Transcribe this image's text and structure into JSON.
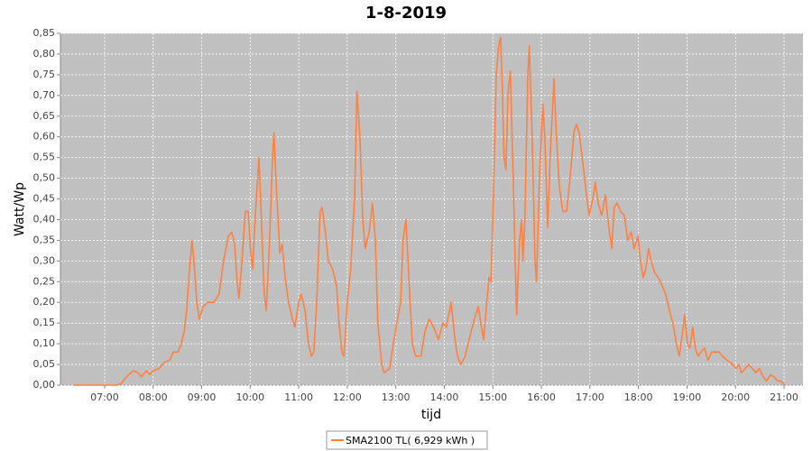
{
  "chart_data": {
    "type": "line",
    "title": "1-8-2019",
    "x_label": "tijd",
    "y_label": "Watt/Wp",
    "x": [
      6.37,
      7.26,
      7.35,
      7.45,
      7.59,
      7.69,
      7.76,
      7.86,
      7.93,
      8.0,
      8.12,
      8.23,
      8.34,
      8.41,
      8.51,
      8.58,
      8.64,
      8.69,
      8.75,
      8.8,
      8.84,
      8.9,
      8.95,
      9.03,
      9.12,
      9.25,
      9.36,
      9.45,
      9.55,
      9.62,
      9.68,
      9.73,
      9.77,
      9.83,
      9.9,
      9.96,
      10.01,
      10.05,
      10.1,
      10.18,
      10.23,
      10.29,
      10.33,
      10.4,
      10.46,
      10.49,
      10.53,
      10.61,
      10.66,
      10.72,
      10.79,
      10.87,
      10.92,
      11.0,
      11.05,
      11.13,
      11.2,
      11.26,
      11.31,
      11.37,
      11.44,
      11.48,
      11.54,
      11.61,
      11.7,
      11.78,
      11.83,
      11.89,
      11.93,
      12.0,
      12.07,
      12.15,
      12.2,
      12.26,
      12.32,
      12.37,
      12.45,
      12.52,
      12.58,
      12.63,
      12.71,
      12.76,
      12.87,
      12.95,
      13.02,
      13.1,
      13.15,
      13.21,
      13.26,
      13.34,
      13.41,
      13.52,
      13.6,
      13.69,
      13.78,
      13.88,
      13.97,
      14.04,
      14.14,
      14.21,
      14.27,
      14.34,
      14.43,
      14.53,
      14.62,
      14.7,
      14.75,
      14.81,
      14.86,
      14.92,
      14.96,
      15.01,
      15.07,
      15.12,
      15.16,
      15.2,
      15.23,
      15.27,
      15.31,
      15.36,
      15.42,
      15.46,
      15.49,
      15.55,
      15.59,
      15.62,
      15.66,
      15.72,
      15.75,
      15.81,
      15.87,
      15.9,
      15.96,
      16.03,
      16.07,
      16.13,
      16.18,
      16.26,
      16.31,
      16.37,
      16.44,
      16.52,
      16.59,
      16.67,
      16.72,
      16.78,
      16.85,
      16.93,
      16.98,
      17.06,
      17.11,
      17.17,
      17.24,
      17.32,
      17.39,
      17.45,
      17.5,
      17.56,
      17.63,
      17.71,
      17.78,
      17.85,
      17.91,
      17.99,
      18.04,
      18.1,
      18.15,
      18.21,
      18.26,
      18.34,
      18.41,
      18.49,
      18.56,
      18.64,
      18.71,
      18.78,
      18.84,
      18.9,
      18.95,
      19.01,
      19.06,
      19.12,
      19.17,
      19.23,
      19.29,
      19.36,
      19.43,
      19.51,
      19.58,
      19.66,
      19.73,
      19.83,
      19.94,
      20.01,
      20.07,
      20.12,
      20.2,
      20.27,
      20.35,
      20.42,
      20.49,
      20.57,
      20.64,
      20.72,
      20.79,
      20.87,
      20.94,
      21.01
    ],
    "series": [
      {
        "name": "SMA2100 TL( 6,929 kWh )",
        "color": "#ff8040",
        "values": [
          0,
          0,
          0.005,
          0.02,
          0.035,
          0.03,
          0.02,
          0.035,
          0.025,
          0.035,
          0.04,
          0.055,
          0.06,
          0.08,
          0.08,
          0.1,
          0.13,
          0.18,
          0.28,
          0.35,
          0.3,
          0.2,
          0.16,
          0.19,
          0.2,
          0.2,
          0.22,
          0.3,
          0.36,
          0.37,
          0.34,
          0.25,
          0.21,
          0.3,
          0.42,
          0.42,
          0.32,
          0.28,
          0.4,
          0.55,
          0.4,
          0.22,
          0.18,
          0.35,
          0.55,
          0.61,
          0.5,
          0.32,
          0.34,
          0.26,
          0.2,
          0.16,
          0.14,
          0.2,
          0.22,
          0.18,
          0.1,
          0.07,
          0.08,
          0.2,
          0.42,
          0.43,
          0.38,
          0.3,
          0.28,
          0.24,
          0.15,
          0.08,
          0.07,
          0.2,
          0.28,
          0.45,
          0.71,
          0.6,
          0.4,
          0.33,
          0.37,
          0.44,
          0.35,
          0.15,
          0.05,
          0.03,
          0.04,
          0.1,
          0.15,
          0.2,
          0.35,
          0.4,
          0.28,
          0.1,
          0.07,
          0.07,
          0.13,
          0.16,
          0.14,
          0.11,
          0.15,
          0.14,
          0.2,
          0.12,
          0.07,
          0.05,
          0.07,
          0.12,
          0.16,
          0.19,
          0.15,
          0.11,
          0.18,
          0.26,
          0.25,
          0.45,
          0.75,
          0.82,
          0.84,
          0.7,
          0.55,
          0.52,
          0.7,
          0.76,
          0.5,
          0.3,
          0.17,
          0.35,
          0.4,
          0.3,
          0.4,
          0.75,
          0.82,
          0.6,
          0.3,
          0.25,
          0.5,
          0.68,
          0.6,
          0.38,
          0.55,
          0.74,
          0.6,
          0.48,
          0.42,
          0.42,
          0.5,
          0.61,
          0.63,
          0.61,
          0.54,
          0.46,
          0.41,
          0.45,
          0.49,
          0.44,
          0.41,
          0.46,
          0.38,
          0.33,
          0.43,
          0.44,
          0.42,
          0.41,
          0.35,
          0.37,
          0.33,
          0.36,
          0.3,
          0.26,
          0.28,
          0.33,
          0.3,
          0.27,
          0.26,
          0.24,
          0.22,
          0.18,
          0.15,
          0.1,
          0.07,
          0.12,
          0.17,
          0.1,
          0.09,
          0.14,
          0.09,
          0.07,
          0.08,
          0.09,
          0.06,
          0.08,
          0.08,
          0.08,
          0.07,
          0.06,
          0.05,
          0.04,
          0.05,
          0.03,
          0.04,
          0.05,
          0.04,
          0.03,
          0.04,
          0.02,
          0.01,
          0.025,
          0.02,
          0.01,
          0.01,
          0
        ]
      }
    ],
    "xlim": [
      6.09,
      21.39
    ],
    "xticks": [
      {
        "value": 7,
        "label": "07:00"
      },
      {
        "value": 8,
        "label": "08:00"
      },
      {
        "value": 9,
        "label": "09:00"
      },
      {
        "value": 10,
        "label": "10:00"
      },
      {
        "value": 11,
        "label": "11:00"
      },
      {
        "value": 12,
        "label": "12:00"
      },
      {
        "value": 13,
        "label": "13:00"
      },
      {
        "value": 14,
        "label": "14:00"
      },
      {
        "value": 15,
        "label": "15:00"
      },
      {
        "value": 16,
        "label": "16:00"
      },
      {
        "value": 17,
        "label": "17:00"
      },
      {
        "value": 18,
        "label": "18:00"
      },
      {
        "value": 19,
        "label": "19:00"
      },
      {
        "value": 20,
        "label": "20:00"
      },
      {
        "value": 21,
        "label": "21:00"
      }
    ],
    "ylim": [
      0,
      0.85
    ],
    "yticks": [
      {
        "value": 0,
        "label": "0,00"
      },
      {
        "value": 0.05,
        "label": "0,05"
      },
      {
        "value": 0.1,
        "label": "0,10"
      },
      {
        "value": 0.15,
        "label": "0,15"
      },
      {
        "value": 0.2,
        "label": "0,20"
      },
      {
        "value": 0.25,
        "label": "0,25"
      },
      {
        "value": 0.3,
        "label": "0,30"
      },
      {
        "value": 0.35,
        "label": "0,35"
      },
      {
        "value": 0.4,
        "label": "0,40"
      },
      {
        "value": 0.45,
        "label": "0,45"
      },
      {
        "value": 0.5,
        "label": "0,50"
      },
      {
        "value": 0.55,
        "label": "0,55"
      },
      {
        "value": 0.6,
        "label": "0,60"
      },
      {
        "value": 0.65,
        "label": "0,65"
      },
      {
        "value": 0.7,
        "label": "0,70"
      },
      {
        "value": 0.75,
        "label": "0,75"
      },
      {
        "value": 0.8,
        "label": "0,80"
      },
      {
        "value": 0.85,
        "label": "0,85"
      }
    ],
    "grid": true
  }
}
